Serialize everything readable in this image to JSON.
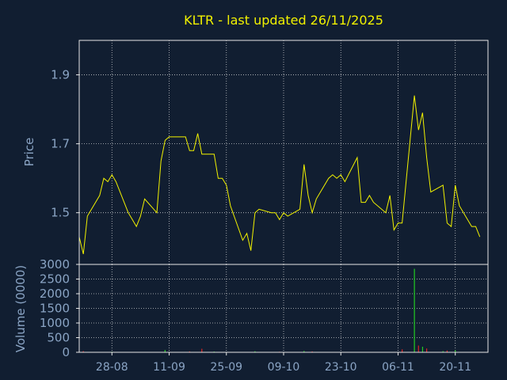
{
  "chart_data": [
    {
      "type": "line",
      "title": "KLTR - last updated 26/11/2025",
      "ylabel": "Price",
      "ylim": [
        1.35,
        2.0
      ],
      "yticks": [
        1.5,
        1.7,
        1.9
      ],
      "ytick_labels": [
        "1.5",
        "1.7",
        "1.9"
      ],
      "x_range": [
        "2025-08-20",
        "2025-11-28"
      ],
      "grid": true,
      "colors": {
        "background": "#111e31",
        "line": "#f2f200",
        "axes": "#e6e6e6",
        "grid": "#e6e6e6",
        "title": "#f2f200",
        "label": "#8aa4c4"
      },
      "series": [
        {
          "x": [
            "2025-08-20",
            "2025-08-21",
            "2025-08-22",
            "2025-08-25",
            "2025-08-26",
            "2025-08-27",
            "2025-08-28",
            "2025-08-29",
            "2025-09-01",
            "2025-09-02",
            "2025-09-03",
            "2025-09-04",
            "2025-09-05",
            "2025-09-08",
            "2025-09-09",
            "2025-09-10",
            "2025-09-11",
            "2025-09-12",
            "2025-09-15",
            "2025-09-16",
            "2025-09-17",
            "2025-09-18",
            "2025-09-19",
            "2025-09-22",
            "2025-09-23",
            "2025-09-24",
            "2025-09-25",
            "2025-09-26",
            "2025-09-29",
            "2025-09-30",
            "2025-10-01",
            "2025-10-02",
            "2025-10-03",
            "2025-10-06",
            "2025-10-07",
            "2025-10-08",
            "2025-10-09",
            "2025-10-10",
            "2025-10-13",
            "2025-10-14",
            "2025-10-15",
            "2025-10-16",
            "2025-10-17",
            "2025-10-20",
            "2025-10-21",
            "2025-10-22",
            "2025-10-23",
            "2025-10-24",
            "2025-10-27",
            "2025-10-28",
            "2025-10-29",
            "2025-10-30",
            "2025-10-31",
            "2025-11-03",
            "2025-11-04",
            "2025-11-05",
            "2025-11-06",
            "2025-11-07",
            "2025-11-10",
            "2025-11-11",
            "2025-11-12",
            "2025-11-13",
            "2025-11-14",
            "2025-11-17",
            "2025-11-18",
            "2025-11-19",
            "2025-11-20",
            "2025-11-21",
            "2025-11-24",
            "2025-11-25",
            "2025-11-26"
          ],
          "values": [
            1.43,
            1.38,
            1.49,
            1.55,
            1.6,
            1.59,
            1.61,
            1.59,
            1.5,
            1.48,
            1.46,
            1.49,
            1.54,
            1.5,
            1.65,
            1.71,
            1.72,
            1.72,
            1.72,
            1.68,
            1.68,
            1.73,
            1.67,
            1.67,
            1.6,
            1.6,
            1.58,
            1.52,
            1.42,
            1.44,
            1.39,
            1.5,
            1.51,
            1.5,
            1.5,
            1.48,
            1.5,
            1.49,
            1.51,
            1.64,
            1.55,
            1.5,
            1.54,
            1.6,
            1.61,
            1.6,
            1.61,
            1.59,
            1.66,
            1.53,
            1.53,
            1.55,
            1.53,
            1.5,
            1.55,
            1.45,
            1.47,
            1.47,
            1.84,
            1.74,
            1.79,
            1.66,
            1.56,
            1.58,
            1.47,
            1.46,
            1.58,
            1.52,
            1.46,
            1.46,
            1.43
          ]
        }
      ]
    },
    {
      "type": "bar",
      "ylabel": "Volume (0000)",
      "ylim": [
        0,
        3000
      ],
      "yticks": [
        0,
        500,
        1000,
        1500,
        2000,
        2500,
        3000
      ],
      "ytick_labels": [
        "0",
        "500",
        "1000",
        "1500",
        "2000",
        "2500",
        "3000"
      ],
      "xticks": [
        "2025-08-28",
        "2025-09-11",
        "2025-09-25",
        "2025-10-09",
        "2025-10-23",
        "2025-11-06",
        "2025-11-20"
      ],
      "xtick_labels": [
        "28-08",
        "11-09",
        "25-09",
        "09-10",
        "23-10",
        "06-11",
        "20-11"
      ],
      "grid": true,
      "colors": {
        "up": "#22cc22",
        "down": "#dd2222"
      },
      "series": [
        {
          "x": [
            "2025-08-21",
            "2025-08-28",
            "2025-09-10",
            "2025-09-16",
            "2025-09-19",
            "2025-09-22",
            "2025-10-02",
            "2025-10-08",
            "2025-10-14",
            "2025-10-16",
            "2025-11-07",
            "2025-11-10",
            "2025-11-11",
            "2025-11-12",
            "2025-11-13",
            "2025-11-17",
            "2025-11-18",
            "2025-11-20"
          ],
          "values": [
            40,
            20,
            80,
            30,
            120,
            25,
            35,
            20,
            45,
            30,
            100,
            2850,
            230,
            190,
            130,
            40,
            60,
            70
          ],
          "direction": [
            "down",
            "up",
            "up",
            "down",
            "down",
            "up",
            "up",
            "down",
            "up",
            "down",
            "down",
            "up",
            "down",
            "up",
            "down",
            "up",
            "down",
            "up"
          ]
        }
      ]
    }
  ]
}
